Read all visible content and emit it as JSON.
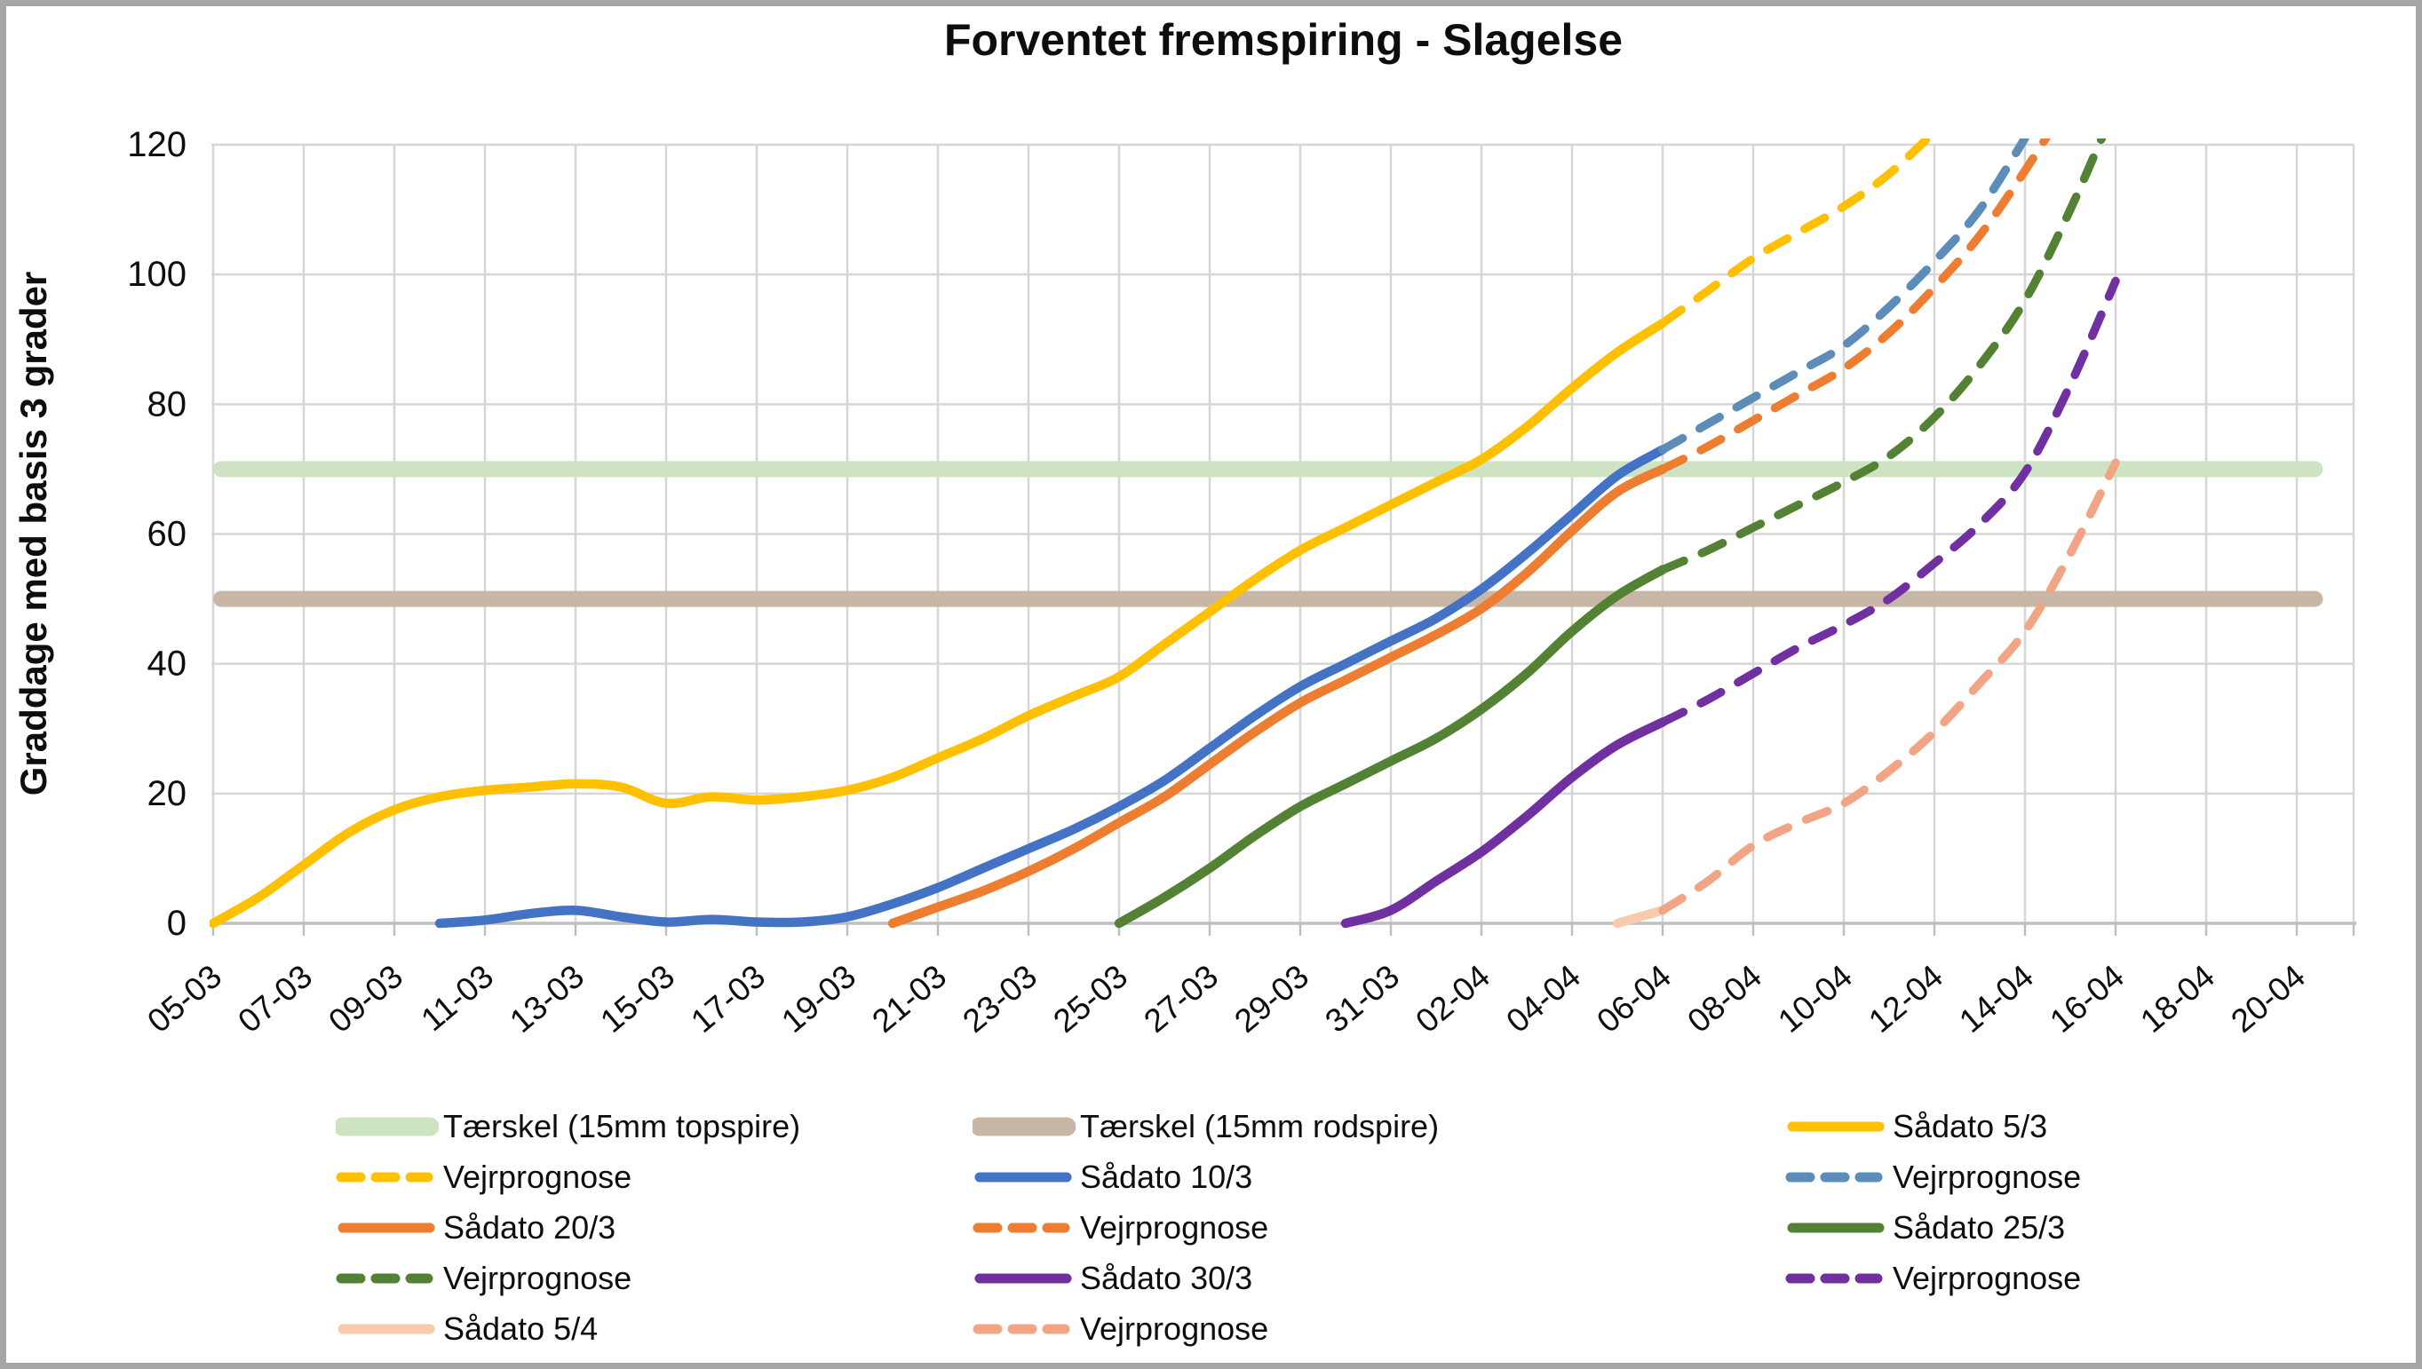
{
  "frame": {
    "border_color": "#a6a6a6"
  },
  "chart_data": {
    "type": "line",
    "title": "Forventet fremspiring - Slagelse",
    "xlabel": "",
    "ylabel": "Graddage med basis 3 grader",
    "ylim": [
      0,
      120
    ],
    "y_ticks": [
      0,
      20,
      40,
      60,
      80,
      100,
      120
    ],
    "grid": true,
    "legend_position": "bottom",
    "x_tick_labels": [
      "05-03",
      "07-03",
      "09-03",
      "11-03",
      "13-03",
      "15-03",
      "17-03",
      "19-03",
      "21-03",
      "23-03",
      "25-03",
      "27-03",
      "29-03",
      "31-03",
      "02-04",
      "04-04",
      "06-04",
      "08-04",
      "10-04",
      "12-04",
      "14-04",
      "16-04",
      "18-04",
      "20-04"
    ],
    "x_days_per_tick": 2,
    "axis_color": "#bfbfbf",
    "gridline_color": "#d6d6d6",
    "thresholds": [
      {
        "name": "Tærskel (15mm topspire)",
        "value": 70,
        "color": "#cde3c1",
        "start_day": 0,
        "end_day": 46.4
      },
      {
        "name": "Tærskel (15mm rodspire)",
        "value": 50,
        "color": "#c8b7a6",
        "start_day": 0,
        "end_day": 46.4
      }
    ],
    "series": [
      {
        "name": "Sådato 5/3",
        "color": "#FFC000",
        "style": "solid",
        "start_day": 0,
        "values": [
          0,
          4,
          9,
          14,
          17.5,
          19.5,
          20.5,
          21,
          21.5,
          21,
          18.5,
          19.5,
          19,
          19.5,
          20.5,
          22.5,
          25.5,
          28.5,
          32,
          35,
          38,
          43,
          48,
          53,
          57.5,
          61,
          64.5,
          68,
          71.5,
          76.5,
          82.5,
          88,
          92.5
        ]
      },
      {
        "name": "Vejrprognose",
        "color": "#FFC000",
        "style": "dashed",
        "start_day": 32,
        "values": [
          92.5,
          97.5,
          102.5,
          106.5,
          110.5,
          115.5,
          122
        ]
      },
      {
        "name": "Sådato 10/3",
        "color": "#4472C4",
        "style": "solid",
        "start_day": 5,
        "values": [
          0,
          0.5,
          1.5,
          2,
          1,
          0.2,
          0.6,
          0.2,
          0.2,
          1,
          3,
          5.5,
          8.5,
          11.5,
          14.5,
          18,
          22,
          27,
          32,
          36.5,
          40,
          43.5,
          47,
          51.5,
          57,
          63,
          69,
          73
        ]
      },
      {
        "name": "Vejrprognose",
        "color": "#5B8DB8",
        "style": "dashed",
        "start_day": 32,
        "values": [
          73,
          77,
          81,
          85,
          89,
          95,
          102,
          110,
          121
        ]
      },
      {
        "name": "Sådato 20/3",
        "color": "#ED7D31",
        "style": "solid",
        "start_day": 15,
        "values": [
          0,
          2.5,
          5,
          8,
          11.5,
          15.5,
          19.5,
          24.5,
          29.5,
          34,
          37.5,
          41,
          44.5,
          48.5,
          54,
          60.5,
          66.5,
          70
        ]
      },
      {
        "name": "Vejrprognose",
        "color": "#ED7D31",
        "style": "dashed",
        "start_day": 32,
        "values": [
          70,
          73.5,
          77.5,
          81.5,
          85.5,
          91,
          98,
          106,
          116,
          127
        ]
      },
      {
        "name": "Sådato 25/3",
        "color": "#548235",
        "style": "solid",
        "start_day": 20,
        "values": [
          0,
          4,
          8.5,
          13.5,
          18,
          21.5,
          25,
          28.5,
          33,
          38.5,
          45,
          50.5,
          54.5
        ]
      },
      {
        "name": "Vejrprognose",
        "color": "#548235",
        "style": "dashed",
        "start_day": 32,
        "values": [
          54.5,
          57.5,
          61,
          64.5,
          68,
          72,
          78,
          86,
          96,
          110,
          126
        ]
      },
      {
        "name": "Sådato 30/3",
        "color": "#7030A0",
        "style": "solid",
        "start_day": 25,
        "values": [
          0,
          2,
          6.5,
          11,
          16.5,
          22.5,
          27.5,
          31
        ]
      },
      {
        "name": "Vejrprognose",
        "color": "#7030A0",
        "style": "dashed",
        "start_day": 32,
        "values": [
          31,
          34.5,
          38.5,
          42.5,
          46,
          50,
          55.5,
          61.5,
          69.5,
          83,
          99
        ]
      },
      {
        "name": "Sådato 5/4",
        "color": "#F8CBAD",
        "style": "solid",
        "start_day": 31,
        "values": [
          0,
          2
        ]
      },
      {
        "name": "Vejrprognose",
        "color": "#F1A585",
        "style": "dashed",
        "start_day": 32,
        "values": [
          2,
          6.5,
          12,
          15.5,
          18.5,
          23.5,
          29.5,
          37,
          45,
          57,
          71
        ]
      }
    ],
    "legend_rows": [
      [
        {
          "swatch": "band",
          "color": "#cde3c1",
          "label": "Tærskel (15mm topspire)"
        },
        {
          "swatch": "band",
          "color": "#c8b7a6",
          "label": "Tærskel (15mm rodspire)"
        },
        {
          "swatch": "solid",
          "color": "#FFC000",
          "label": "Sådato 5/3"
        }
      ],
      [
        {
          "swatch": "dashed",
          "color": "#FFC000",
          "label": "Vejrprognose"
        },
        {
          "swatch": "solid",
          "color": "#4472C4",
          "label": "Sådato 10/3"
        },
        {
          "swatch": "dashed",
          "color": "#5B8DB8",
          "label": "Vejrprognose"
        }
      ],
      [
        {
          "swatch": "solid",
          "color": "#ED7D31",
          "label": "Sådato 20/3"
        },
        {
          "swatch": "dashed",
          "color": "#ED7D31",
          "label": "Vejrprognose"
        },
        {
          "swatch": "solid",
          "color": "#548235",
          "label": "Sådato 25/3"
        }
      ],
      [
        {
          "swatch": "dashed",
          "color": "#548235",
          "label": "Vejrprognose"
        },
        {
          "swatch": "solid",
          "color": "#7030A0",
          "label": "Sådato 30/3"
        },
        {
          "swatch": "dashed",
          "color": "#7030A0",
          "label": "Vejrprognose"
        }
      ],
      [
        {
          "swatch": "solid",
          "color": "#F8CBAD",
          "label": "Sådato 5/4"
        },
        {
          "swatch": "dashed",
          "color": "#F1A585",
          "label": "Vejrprognose"
        }
      ]
    ]
  }
}
